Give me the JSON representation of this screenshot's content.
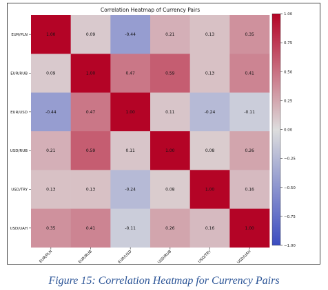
{
  "chart_data": {
    "type": "heatmap",
    "title": "Correlation Heatmap of Currency Pairs",
    "rows": [
      "EUR/PLN",
      "EUR/RUB",
      "EUR/USD",
      "USD/RUB",
      "USD/TRY",
      "USD/UAH"
    ],
    "cols": [
      "EUR/PLN",
      "EUR/RUB",
      "EUR/USD",
      "USD/RUB",
      "USD/TRY",
      "USD/UAH"
    ],
    "values": [
      [
        1.0,
        0.09,
        -0.44,
        0.21,
        0.13,
        0.35
      ],
      [
        0.09,
        1.0,
        0.47,
        0.59,
        0.13,
        0.41
      ],
      [
        -0.44,
        0.47,
        1.0,
        0.11,
        -0.24,
        -0.11
      ],
      [
        0.21,
        0.59,
        0.11,
        1.0,
        0.08,
        0.26
      ],
      [
        0.13,
        0.13,
        -0.24,
        0.08,
        1.0,
        0.16
      ],
      [
        0.35,
        0.41,
        -0.11,
        0.26,
        0.16,
        1.0
      ]
    ],
    "colorbar": {
      "range": [
        -1.0,
        1.0
      ],
      "ticks": [
        "1.00",
        "0.75",
        "0.50",
        "0.25",
        "0.00",
        "−0.25",
        "−0.50",
        "−0.75",
        "−1.00"
      ],
      "colormap": "coolwarm"
    },
    "colors": {
      "low": "#3b4cc0",
      "mid": "#dddddd",
      "high": "#b40426"
    },
    "grid": false
  },
  "caption": "Figure 15: Correlation Heatmap for Currency Pairs"
}
